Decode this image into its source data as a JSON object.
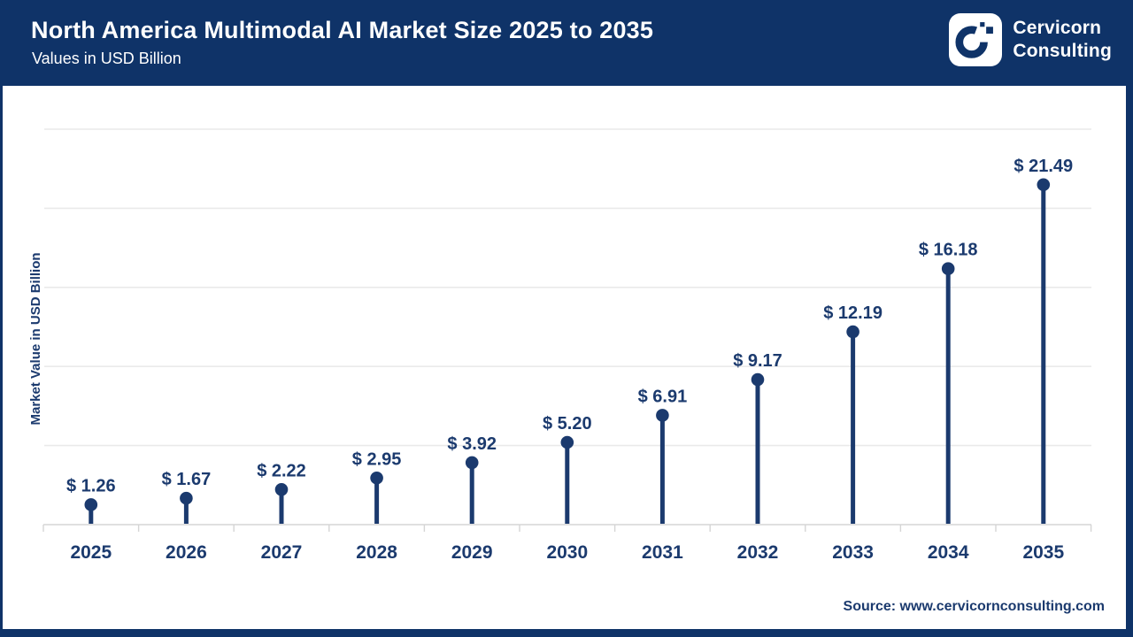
{
  "header": {
    "title": "North America Multimodal AI Market Size 2025 to 2035",
    "subtitle": "Values in USD Billion",
    "logo_line1": "Cervicorn",
    "logo_line2": "Consulting"
  },
  "footer": {
    "source": "Source: www.cervicornconsulting.com"
  },
  "chart_data": {
    "type": "lollipop",
    "title": "North America Multimodal AI Market Size 2025 to 2035",
    "subtitle": "Values in USD Billion",
    "categories": [
      "2025",
      "2026",
      "2027",
      "2028",
      "2029",
      "2030",
      "2031",
      "2032",
      "2033",
      "2034",
      "2035"
    ],
    "values": [
      1.26,
      1.67,
      2.22,
      2.95,
      3.92,
      5.2,
      6.91,
      9.17,
      12.19,
      16.18,
      21.49
    ],
    "value_prefix": "$ ",
    "value_labels": [
      "$ 1.26",
      "$ 1.67",
      "$ 2.22",
      "$ 2.95",
      "$ 3.92",
      "$ 5.20",
      "$ 6.91",
      "$ 9.17",
      "$ 12.19",
      "$ 16.18",
      "$ 21.49"
    ],
    "xlabel": "",
    "ylabel": "Market Value in USD Billion",
    "ylim": [
      0,
      25
    ],
    "gridlines": [
      5,
      10,
      15,
      20,
      25
    ],
    "grid": true,
    "legend": false,
    "y_tick_labels_shown": false
  },
  "colors": {
    "brand_navy": "#0f3368",
    "chart_navy": "#1b3a6e",
    "grid": "#eaeaea",
    "axis": "#d5d5d5",
    "background": "#ffffff"
  }
}
